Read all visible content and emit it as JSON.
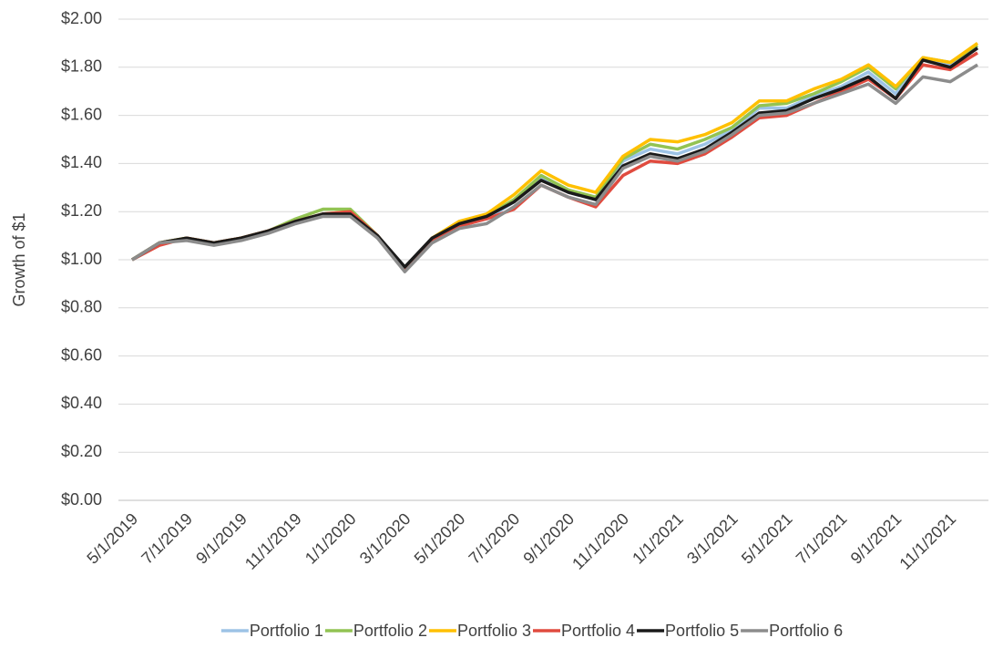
{
  "chart_data": {
    "type": "line",
    "y_label": "Growth of $1",
    "categories": [
      "5/1/2019",
      null,
      "7/1/2019",
      null,
      "9/1/2019",
      null,
      "11/1/2019",
      null,
      "1/1/2020",
      null,
      "3/1/2020",
      null,
      "5/1/2020",
      null,
      "7/1/2020",
      null,
      "9/1/2020",
      null,
      "11/1/2020",
      null,
      "1/1/2021",
      null,
      "3/1/2021",
      null,
      "5/1/2021",
      null,
      "7/1/2021",
      null,
      "9/1/2021",
      null,
      "11/1/2021",
      null
    ],
    "series": [
      {
        "name": "Portfolio 1",
        "color": "#9dc3e6",
        "values": [
          1.0,
          1.07,
          1.09,
          1.07,
          1.09,
          1.12,
          1.16,
          1.19,
          1.2,
          1.1,
          0.96,
          1.08,
          1.14,
          1.17,
          1.24,
          1.34,
          1.28,
          1.25,
          1.41,
          1.46,
          1.44,
          1.48,
          1.54,
          1.63,
          1.63,
          1.68,
          1.72,
          1.78,
          1.69,
          1.83,
          1.81,
          1.88
        ]
      },
      {
        "name": "Portfolio 2",
        "color": "#92c353",
        "values": [
          1.0,
          1.07,
          1.09,
          1.07,
          1.09,
          1.12,
          1.17,
          1.21,
          1.21,
          1.1,
          0.96,
          1.09,
          1.15,
          1.18,
          1.25,
          1.35,
          1.29,
          1.26,
          1.42,
          1.48,
          1.46,
          1.5,
          1.55,
          1.64,
          1.65,
          1.69,
          1.74,
          1.8,
          1.71,
          1.84,
          1.82,
          1.89
        ]
      },
      {
        "name": "Portfolio 3",
        "color": "#ffc000",
        "values": [
          1.0,
          1.07,
          1.09,
          1.07,
          1.09,
          1.12,
          1.16,
          1.19,
          1.2,
          1.1,
          0.96,
          1.09,
          1.16,
          1.19,
          1.27,
          1.37,
          1.31,
          1.28,
          1.43,
          1.5,
          1.49,
          1.52,
          1.57,
          1.66,
          1.66,
          1.71,
          1.75,
          1.81,
          1.72,
          1.84,
          1.82,
          1.9
        ]
      },
      {
        "name": "Portfolio 4",
        "color": "#e04b3f",
        "values": [
          1.0,
          1.06,
          1.09,
          1.07,
          1.09,
          1.12,
          1.16,
          1.19,
          1.2,
          1.1,
          0.96,
          1.08,
          1.14,
          1.17,
          1.21,
          1.31,
          1.26,
          1.22,
          1.35,
          1.41,
          1.4,
          1.44,
          1.51,
          1.59,
          1.6,
          1.65,
          1.7,
          1.75,
          1.67,
          1.81,
          1.79,
          1.86
        ]
      },
      {
        "name": "Portfolio 5",
        "color": "#1a1a1a",
        "values": [
          1.0,
          1.07,
          1.09,
          1.07,
          1.09,
          1.12,
          1.16,
          1.19,
          1.19,
          1.1,
          0.97,
          1.09,
          1.15,
          1.18,
          1.24,
          1.33,
          1.28,
          1.25,
          1.39,
          1.44,
          1.42,
          1.46,
          1.53,
          1.61,
          1.62,
          1.67,
          1.71,
          1.76,
          1.67,
          1.83,
          1.8,
          1.88
        ]
      },
      {
        "name": "Portfolio 6",
        "color": "#8c8c8c",
        "values": [
          1.0,
          1.07,
          1.08,
          1.06,
          1.08,
          1.11,
          1.15,
          1.18,
          1.18,
          1.09,
          0.95,
          1.07,
          1.13,
          1.15,
          1.22,
          1.31,
          1.26,
          1.23,
          1.38,
          1.43,
          1.41,
          1.45,
          1.52,
          1.6,
          1.61,
          1.65,
          1.69,
          1.73,
          1.65,
          1.76,
          1.74,
          1.81
        ]
      }
    ],
    "ylim": [
      0,
      2
    ],
    "yticks": [
      {
        "value": 0,
        "label": "$0.00"
      },
      {
        "value": 0.2,
        "label": "$0.20"
      },
      {
        "value": 0.4,
        "label": "$0.40"
      },
      {
        "value": 0.6,
        "label": "$0.60"
      },
      {
        "value": 0.8,
        "label": "$0.80"
      },
      {
        "value": 1,
        "label": "$1.00"
      },
      {
        "value": 1.2,
        "label": "$1.20"
      },
      {
        "value": 1.4,
        "label": "$1.40"
      },
      {
        "value": 1.6,
        "label": "$1.60"
      },
      {
        "value": 1.8,
        "label": "$1.80"
      },
      {
        "value": 2,
        "label": "$2.00"
      }
    ],
    "grid": true,
    "legend": "bottom"
  }
}
